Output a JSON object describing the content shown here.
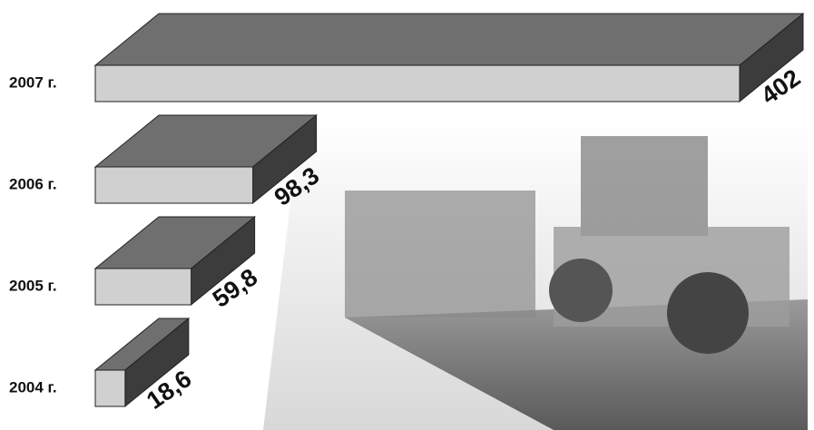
{
  "chart_data": {
    "type": "bar3d",
    "categories": [
      "2007 г.",
      "2006 г.",
      "2005 г.",
      "2004 г."
    ],
    "values": [
      402,
      98.3,
      59.8,
      18.6
    ],
    "value_labels": [
      "402",
      "98,3",
      "59,8",
      "18,6"
    ],
    "colors": {
      "top": "#6f6f6f",
      "front": "#d0d0d0",
      "side": "#3c3c3c"
    }
  }
}
